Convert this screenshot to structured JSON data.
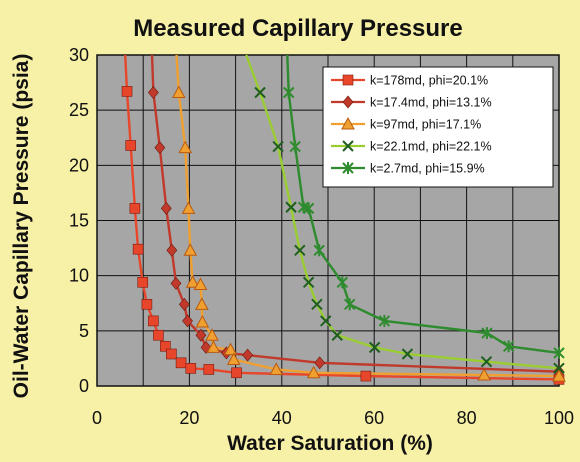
{
  "chart_data": {
    "type": "line",
    "title": "Measured Capillary Pressure",
    "xlabel": "Water Saturation (%)",
    "ylabel": "Oil-Water Capillary Pressure (psia)",
    "xlim": [
      0,
      100
    ],
    "ylim": [
      0,
      30
    ],
    "xticks": [
      "0",
      "20",
      "40",
      "60",
      "80",
      "100"
    ],
    "yticks": [
      "0",
      "5",
      "10",
      "15",
      "20",
      "25",
      "30"
    ],
    "grid": true,
    "legend_position": "top-right",
    "plot_background": "#A6A6A6",
    "page_background": "#F7F0A7",
    "series": [
      {
        "name": "k=178md, phi=20.1%",
        "color": "#E8462A",
        "marker": "square",
        "points": [
          [
            6.5,
            26.7
          ],
          [
            7.3,
            21.8
          ],
          [
            8.2,
            16.1
          ],
          [
            8.9,
            12.4
          ],
          [
            9.9,
            9.4
          ],
          [
            10.8,
            7.4
          ],
          [
            12.2,
            5.9
          ],
          [
            13.3,
            4.6
          ],
          [
            14.8,
            3.6
          ],
          [
            16.1,
            2.9
          ],
          [
            18.2,
            2.1
          ],
          [
            20.3,
            1.6
          ],
          [
            24.2,
            1.5
          ],
          [
            30.2,
            1.2
          ],
          [
            58.2,
            0.9
          ],
          [
            100,
            0.6
          ]
        ],
        "curve_top": [
          [
            6.1,
            30
          ],
          [
            6.5,
            26.7
          ]
        ]
      },
      {
        "name": "k=17.4md, phi=13.1%",
        "color": "#C0392B",
        "marker": "diamond",
        "points": [
          [
            12.2,
            26.6
          ],
          [
            13.6,
            21.6
          ],
          [
            15.0,
            16.1
          ],
          [
            16.2,
            12.3
          ],
          [
            17.1,
            9.3
          ],
          [
            18.9,
            7.4
          ],
          [
            19.6,
            5.9
          ],
          [
            22.5,
            4.6
          ],
          [
            23.6,
            3.5
          ],
          [
            28.0,
            3.0
          ],
          [
            32.6,
            2.8
          ],
          [
            48.2,
            2.1
          ],
          [
            100,
            1.3
          ]
        ],
        "curve_top": [
          [
            11.9,
            30
          ],
          [
            12.2,
            26.6
          ]
        ]
      },
      {
        "name": "k=97md, phi=17.1%",
        "color": "#F0A030",
        "marker": "triangle",
        "points": [
          [
            17.7,
            26.6
          ],
          [
            19.1,
            21.6
          ],
          [
            19.8,
            16.1
          ],
          [
            20.2,
            12.3
          ],
          [
            20.7,
            9.4
          ],
          [
            22.4,
            9.2
          ],
          [
            22.7,
            7.4
          ],
          [
            22.8,
            5.8
          ],
          [
            24.9,
            4.6
          ],
          [
            25.2,
            3.5
          ],
          [
            28.9,
            3.3
          ],
          [
            29.6,
            2.4
          ],
          [
            38.8,
            1.5
          ],
          [
            46.9,
            1.2
          ],
          [
            83.8,
            1.0
          ],
          [
            100,
            0.9
          ]
        ],
        "curve_top": [
          [
            17.2,
            30
          ],
          [
            17.7,
            26.6
          ]
        ]
      },
      {
        "name": "k=22.1md, phi=22.1%",
        "color": "#9ACD32",
        "marker": "x",
        "points": [
          [
            35.3,
            26.6
          ],
          [
            39.2,
            21.7
          ],
          [
            42.0,
            16.2
          ],
          [
            43.9,
            12.3
          ],
          [
            45.8,
            9.4
          ],
          [
            47.6,
            7.4
          ],
          [
            49.5,
            5.9
          ],
          [
            52.0,
            4.6
          ],
          [
            60.1,
            3.5
          ],
          [
            67.2,
            2.9
          ],
          [
            84.3,
            2.2
          ],
          [
            100,
            1.6
          ]
        ],
        "curve_top": [
          [
            32.3,
            30
          ],
          [
            35.3,
            26.6
          ]
        ]
      },
      {
        "name": "k=2.7md, phi=15.9%",
        "color": "#2E8B2E",
        "marker": "star",
        "points": [
          [
            41.5,
            26.6
          ],
          [
            42.9,
            21.7
          ],
          [
            44.7,
            16.2
          ],
          [
            45.8,
            16.1
          ],
          [
            48.1,
            12.3
          ],
          [
            53.1,
            9.4
          ],
          [
            54.7,
            7.4
          ],
          [
            62.2,
            5.9
          ],
          [
            84.4,
            4.8
          ],
          [
            89.1,
            3.6
          ],
          [
            100,
            3.0
          ]
        ],
        "curve_top": [
          [
            41.2,
            30
          ],
          [
            41.5,
            26.6
          ]
        ]
      }
    ]
  }
}
